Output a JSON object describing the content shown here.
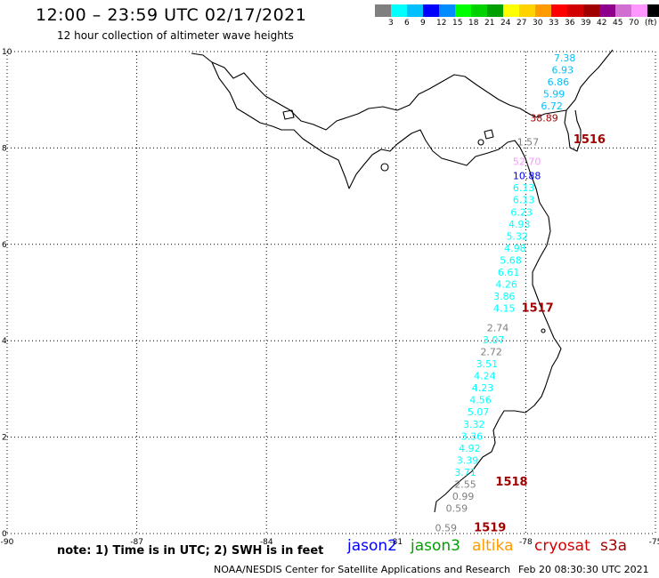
{
  "header": {
    "title": "12:00 – 23:59 UTC 02/17/2021",
    "subtitle": "12 hour collection of altimeter wave heights"
  },
  "legend": {
    "colors": [
      "#7f7f7f",
      "#00ffff",
      "#00bfff",
      "#0000ff",
      "#008cff",
      "#00ff00",
      "#00d200",
      "#00a000",
      "#ffff00",
      "#ffd200",
      "#ff9a00",
      "#ff0000",
      "#d20000",
      "#a00000",
      "#8c008c",
      "#d26ed2",
      "#ff96ff",
      "#000000"
    ],
    "labels": [
      "3",
      "6",
      "9",
      "12",
      "15",
      "18",
      "21",
      "24",
      "27",
      "30",
      "33",
      "36",
      "39",
      "42",
      "45",
      "70",
      "(ft)"
    ]
  },
  "axes": {
    "x_ticks": [
      "-90",
      "-87",
      "-84",
      "-81",
      "-78",
      "-75"
    ],
    "y_ticks": [
      "10",
      "8",
      "6",
      "4",
      "2",
      "0"
    ]
  },
  "map": {
    "lon_range": [
      -90,
      -75
    ],
    "lat_range": [
      0,
      10
    ],
    "wave_heights": [
      {
        "t": "7.38",
        "lon": -77.35,
        "lat": 9.8,
        "c": "#00bfff"
      },
      {
        "t": "6.93",
        "lon": -77.4,
        "lat": 9.55,
        "c": "#00bfff"
      },
      {
        "t": "6.86",
        "lon": -77.5,
        "lat": 9.3,
        "c": "#00bfff"
      },
      {
        "t": "5.99",
        "lon": -77.6,
        "lat": 9.05,
        "c": "#00bfff"
      },
      {
        "t": "6.72",
        "lon": -77.65,
        "lat": 8.8,
        "c": "#00bfff"
      },
      {
        "t": "38.89",
        "lon": -77.9,
        "lat": 8.55,
        "c": "#a00000"
      },
      {
        "t": "1.57",
        "lon": -78.2,
        "lat": 8.05,
        "c": "#7f7f7f"
      },
      {
        "t": "52.70",
        "lon": -78.3,
        "lat": 7.65,
        "c": "#ff96ff"
      },
      {
        "t": "10.88",
        "lon": -78.3,
        "lat": 7.35,
        "c": "#0000ff"
      },
      {
        "t": "6.13",
        "lon": -78.3,
        "lat": 7.1,
        "c": "#00ffff"
      },
      {
        "t": "6.13",
        "lon": -78.3,
        "lat": 6.85,
        "c": "#00ffff"
      },
      {
        "t": "6.23",
        "lon": -78.35,
        "lat": 6.6,
        "c": "#00ffff"
      },
      {
        "t": "4.93",
        "lon": -78.4,
        "lat": 6.35,
        "c": "#00ffff"
      },
      {
        "t": "5.32",
        "lon": -78.45,
        "lat": 6.1,
        "c": "#00ffff"
      },
      {
        "t": "4.98",
        "lon": -78.5,
        "lat": 5.85,
        "c": "#00ffff"
      },
      {
        "t": "5.68",
        "lon": -78.6,
        "lat": 5.6,
        "c": "#00ffff"
      },
      {
        "t": "6.61",
        "lon": -78.65,
        "lat": 5.35,
        "c": "#00ffff"
      },
      {
        "t": "4.26",
        "lon": -78.7,
        "lat": 5.1,
        "c": "#00ffff"
      },
      {
        "t": "3.86",
        "lon": -78.75,
        "lat": 4.85,
        "c": "#00ffff"
      },
      {
        "t": "4.15",
        "lon": -78.75,
        "lat": 4.6,
        "c": "#00ffff"
      },
      {
        "t": "2.74",
        "lon": -78.9,
        "lat": 4.2,
        "c": "#7f7f7f"
      },
      {
        "t": "3.07",
        "lon": -79.0,
        "lat": 3.95,
        "c": "#00ffff"
      },
      {
        "t": "2.72",
        "lon": -79.05,
        "lat": 3.7,
        "c": "#7f7f7f"
      },
      {
        "t": "3.51",
        "lon": -79.15,
        "lat": 3.45,
        "c": "#00ffff"
      },
      {
        "t": "4.24",
        "lon": -79.2,
        "lat": 3.2,
        "c": "#00ffff"
      },
      {
        "t": "4.23",
        "lon": -79.25,
        "lat": 2.95,
        "c": "#00ffff"
      },
      {
        "t": "4.56",
        "lon": -79.3,
        "lat": 2.7,
        "c": "#00ffff"
      },
      {
        "t": "5.07",
        "lon": -79.35,
        "lat": 2.45,
        "c": "#00ffff"
      },
      {
        "t": "3.32",
        "lon": -79.45,
        "lat": 2.2,
        "c": "#00ffff"
      },
      {
        "t": "3.36",
        "lon": -79.5,
        "lat": 1.95,
        "c": "#00ffff"
      },
      {
        "t": "4.92",
        "lon": -79.55,
        "lat": 1.7,
        "c": "#00ffff"
      },
      {
        "t": "3.39",
        "lon": -79.6,
        "lat": 1.45,
        "c": "#00ffff"
      },
      {
        "t": "3.71",
        "lon": -79.65,
        "lat": 1.2,
        "c": "#00ffff"
      },
      {
        "t": "2.55",
        "lon": -79.65,
        "lat": 0.95,
        "c": "#7f7f7f"
      },
      {
        "t": "0.99",
        "lon": -79.7,
        "lat": 0.7,
        "c": "#7f7f7f"
      },
      {
        "t": "0.59",
        "lon": -79.85,
        "lat": 0.45,
        "c": "#7f7f7f"
      },
      {
        "t": "0.59",
        "lon": -80.1,
        "lat": 0.05,
        "c": "#7f7f7f"
      }
    ],
    "pass_labels": [
      {
        "t": "1516",
        "lon": -76.9,
        "lat": 8.1,
        "c": "#a00000"
      },
      {
        "t": "1517",
        "lon": -78.1,
        "lat": 4.6,
        "c": "#a00000"
      },
      {
        "t": "1518",
        "lon": -78.7,
        "lat": 1.0,
        "c": "#a00000"
      },
      {
        "t": "1519",
        "lon": -79.2,
        "lat": 0.05,
        "c": "#a00000"
      }
    ]
  },
  "footer": {
    "note": "note: 1) Time is in UTC; 2) SWH is in feet",
    "satellites": [
      {
        "name": "jason2",
        "color": "#0000ff"
      },
      {
        "name": "jason3",
        "color": "#00a000"
      },
      {
        "name": "altika",
        "color": "#ff9a00"
      },
      {
        "name": "cryosat",
        "color": "#d20000"
      },
      {
        "name": "s3a",
        "color": "#a00000"
      }
    ],
    "credit": "NOAA/NESDIS Center for Satellite Applications and Research",
    "timestamp": "Feb 20 08:30:30 UTC 2021"
  }
}
